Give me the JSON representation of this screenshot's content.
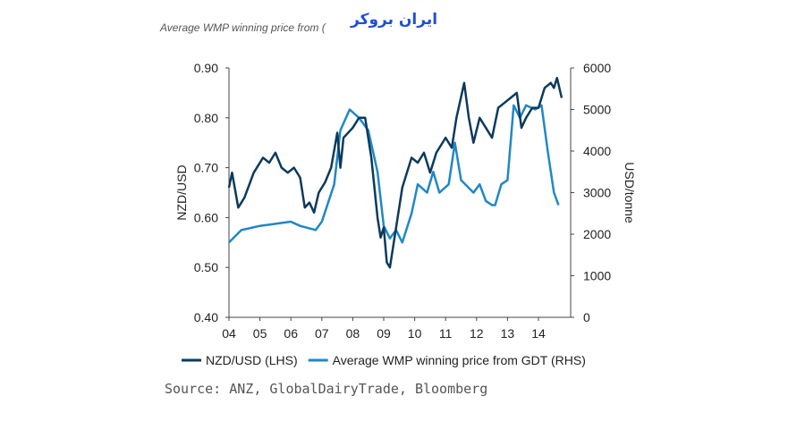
{
  "header_text": "Average WMP winning price from (",
  "logo_text": "ایران بروکر",
  "source": "Source: ANZ, GlobalDairyTrade, Bloomberg",
  "chart_data": {
    "type": "line",
    "xlabel": "",
    "ylabel": "NZD/USD",
    "y2label": "USD/tonne",
    "xlim": [
      2004,
      2015
    ],
    "ylim": [
      0.4,
      0.9
    ],
    "y2lim": [
      0,
      6000
    ],
    "x_ticks": [
      "04",
      "05",
      "06",
      "07",
      "08",
      "09",
      "10",
      "11",
      "12",
      "13",
      "14"
    ],
    "y_ticks": [
      "0.40",
      "0.50",
      "0.60",
      "0.70",
      "0.80",
      "0.90"
    ],
    "y2_ticks": [
      "0",
      "1000",
      "2000",
      "3000",
      "4000",
      "5000",
      "6000"
    ],
    "grid": false,
    "legend": "bottom",
    "series": [
      {
        "name": "NZD/USD (LHS)",
        "axis": "left",
        "color": "#0d3a5c",
        "x": [
          2004.0,
          2004.1,
          2004.3,
          2004.5,
          2004.8,
          2005.1,
          2005.3,
          2005.5,
          2005.7,
          2005.9,
          2006.1,
          2006.3,
          2006.45,
          2006.6,
          2006.75,
          2006.9,
          2007.1,
          2007.3,
          2007.5,
          2007.6,
          2007.7,
          2008.0,
          2008.2,
          2008.4,
          2008.6,
          2008.8,
          2008.9,
          2009.0,
          2009.1,
          2009.2,
          2009.4,
          2009.6,
          2009.9,
          2010.1,
          2010.3,
          2010.5,
          2010.7,
          2011.0,
          2011.2,
          2011.35,
          2011.6,
          2011.75,
          2011.9,
          2012.1,
          2012.3,
          2012.5,
          2012.7,
          2012.9,
          2013.1,
          2013.3,
          2013.45,
          2013.6,
          2013.8,
          2014.0,
          2014.2,
          2014.4,
          2014.5,
          2014.6,
          2014.75
        ],
        "y": [
          0.66,
          0.69,
          0.62,
          0.64,
          0.69,
          0.72,
          0.71,
          0.73,
          0.7,
          0.69,
          0.7,
          0.68,
          0.62,
          0.63,
          0.61,
          0.65,
          0.67,
          0.7,
          0.77,
          0.7,
          0.76,
          0.78,
          0.8,
          0.8,
          0.72,
          0.6,
          0.56,
          0.58,
          0.51,
          0.5,
          0.58,
          0.66,
          0.72,
          0.71,
          0.73,
          0.69,
          0.73,
          0.76,
          0.74,
          0.8,
          0.87,
          0.8,
          0.75,
          0.8,
          0.78,
          0.76,
          0.82,
          0.83,
          0.84,
          0.85,
          0.78,
          0.8,
          0.82,
          0.82,
          0.86,
          0.87,
          0.86,
          0.88,
          0.84
        ]
      },
      {
        "name": "Average WMP winning price from GDT (RHS)",
        "axis": "right",
        "color": "#1f88c7",
        "x": [
          2004.0,
          2004.4,
          2005.0,
          2005.5,
          2006.0,
          2006.3,
          2006.8,
          2007.0,
          2007.4,
          2007.6,
          2007.9,
          2008.2,
          2008.5,
          2008.8,
          2009.0,
          2009.2,
          2009.4,
          2009.6,
          2009.9,
          2010.1,
          2010.4,
          2010.6,
          2010.8,
          2011.1,
          2011.3,
          2011.5,
          2011.9,
          2012.1,
          2012.3,
          2012.5,
          2012.6,
          2012.8,
          2013.0,
          2013.2,
          2013.4,
          2013.6,
          2013.9,
          2014.1,
          2014.3,
          2014.5,
          2014.6,
          2014.65
        ],
        "y": [
          1800,
          2100,
          2200,
          2250,
          2300,
          2200,
          2100,
          2300,
          3200,
          4500,
          5000,
          4800,
          4500,
          3500,
          2200,
          1900,
          2100,
          1800,
          2500,
          3200,
          3000,
          3500,
          3000,
          3200,
          4200,
          3300,
          3000,
          3200,
          2800,
          2700,
          2700,
          3200,
          3300,
          5100,
          4800,
          5100,
          5000,
          5100,
          4000,
          3000,
          2800,
          2700
        ]
      }
    ]
  }
}
